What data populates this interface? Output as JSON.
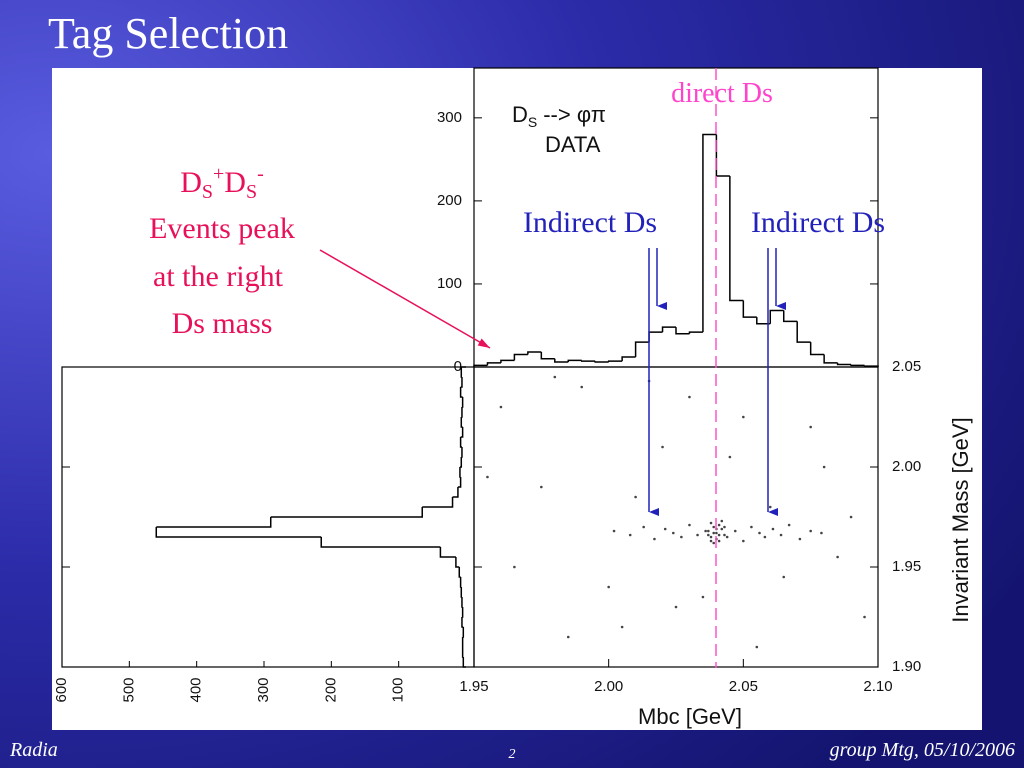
{
  "title": "Tag Selection",
  "footer": {
    "left": "Radia",
    "page": "2",
    "right": "group Mtg, 05/10/2006"
  },
  "annotations": {
    "direct": "direct Ds",
    "indirect": [
      "Indirect Ds",
      "Indirect Ds"
    ],
    "peak_parts": [
      "D",
      "S",
      "+",
      "D",
      "S",
      "-"
    ],
    "peak_lines": [
      "Events peak",
      "at the right",
      "Ds mass"
    ]
  },
  "chart_data": [
    {
      "type": "histogram",
      "orientation": "vertical",
      "label_parts": [
        "D",
        "S",
        "--> φπ"
      ],
      "label2": "DATA",
      "bins": [
        1.95,
        1.955,
        1.96,
        1.965,
        1.97,
        1.975,
        1.98,
        1.985,
        1.99,
        1.995,
        2.0,
        2.005,
        2.01,
        2.015,
        2.02,
        2.025,
        2.03,
        2.035,
        2.04,
        2.045,
        2.05,
        2.055,
        2.06,
        2.065,
        2.07,
        2.075,
        2.08,
        2.085,
        2.09,
        2.095,
        2.1
      ],
      "counts": [
        2,
        5,
        8,
        15,
        18,
        10,
        6,
        8,
        7,
        6,
        7,
        12,
        30,
        42,
        48,
        40,
        42,
        280,
        230,
        80,
        60,
        52,
        68,
        55,
        30,
        15,
        5,
        3,
        2,
        1
      ],
      "xlim": [
        1.95,
        2.1
      ],
      "ylim": [
        0,
        360
      ],
      "yticks": [
        0,
        100,
        200,
        300
      ],
      "color": "#000000"
    },
    {
      "type": "scatter",
      "x": [
        2.037,
        2.038,
        2.039,
        2.04,
        2.041,
        2.042,
        2.043,
        2.038,
        2.04,
        2.041,
        2.039,
        2.042,
        2.037,
        2.04,
        2.044,
        2.036,
        2.039,
        2.041,
        2.043,
        2.038,
        2.002,
        2.008,
        2.013,
        2.017,
        2.021,
        2.024,
        2.027,
        2.03,
        2.033,
        2.047,
        2.05,
        2.053,
        2.056,
        2.058,
        2.061,
        2.064,
        2.067,
        2.071,
        2.075,
        2.079,
        1.96,
        1.975,
        1.99,
        2.005,
        2.02,
        2.035,
        2.05,
        2.065,
        2.08,
        2.095,
        1.965,
        1.985,
        2.01,
        2.03,
        2.055,
        2.075,
        2.09,
        1.955,
        1.98,
        2.0,
        2.025,
        2.045,
        2.06,
        2.085,
        2.015
      ],
      "y": [
        1.968,
        1.965,
        1.97,
        1.967,
        1.963,
        1.969,
        1.966,
        1.972,
        1.964,
        1.971,
        1.962,
        1.973,
        1.966,
        1.969,
        1.965,
        1.968,
        1.967,
        1.966,
        1.97,
        1.963,
        1.968,
        1.966,
        1.97,
        1.964,
        1.969,
        1.967,
        1.965,
        1.971,
        1.966,
        1.968,
        1.963,
        1.97,
        1.967,
        1.965,
        1.969,
        1.966,
        1.971,
        1.964,
        1.968,
        1.967,
        2.03,
        1.99,
        2.04,
        1.92,
        2.01,
        1.935,
        2.025,
        1.945,
        2.0,
        1.925,
        1.95,
        1.915,
        1.985,
        2.035,
        1.91,
        2.02,
        1.975,
        1.995,
        2.045,
        1.94,
        1.93,
        2.005,
        1.98,
        1.955,
        2.043
      ],
      "xlim": [
        1.95,
        2.1
      ],
      "ylim": [
        1.9,
        2.05
      ],
      "xticks": [
        1.95,
        {
          "value": 2.0,
          "label": "2.00"
        },
        2.05,
        {
          "value": 2.1,
          "label": "2.10"
        }
      ],
      "yticks": [
        2.05,
        {
          "value": 2.0,
          "label": "2.00"
        },
        1.95,
        {
          "value": 1.9,
          "label": "1.90"
        }
      ],
      "xlabel": "Mbc [GeV]",
      "ylabel": "Invariant Mass [GeV]",
      "color": "#444444"
    },
    {
      "type": "histogram",
      "orientation": "horizontal",
      "bins": [
        1.9,
        1.905,
        1.91,
        1.915,
        1.92,
        1.925,
        1.93,
        1.935,
        1.94,
        1.945,
        1.95,
        1.955,
        1.96,
        1.965,
        1.97,
        1.975,
        1.98,
        1.985,
        1.99,
        1.995,
        2.0,
        2.005,
        2.01,
        2.015,
        2.02,
        2.025,
        2.03,
        2.035,
        2.04,
        2.045,
        2.05
      ],
      "counts": [
        4,
        5,
        5,
        4,
        6,
        5,
        6,
        7,
        8,
        10,
        15,
        38,
        215,
        460,
        290,
        65,
        20,
        12,
        8,
        9,
        7,
        6,
        8,
        5,
        7,
        6,
        5,
        8,
        6,
        7
      ],
      "xlim": [
        0,
        600
      ],
      "xticks": [
        600,
        500,
        400,
        300,
        200,
        100
      ],
      "color": "#000000"
    }
  ]
}
